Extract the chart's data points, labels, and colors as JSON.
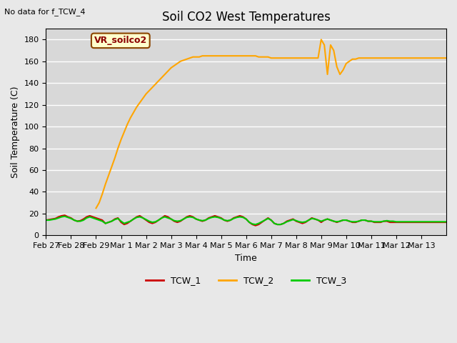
{
  "title": "Soil CO2 West Temperatures",
  "ylabel": "Soil Temperature (C)",
  "xlabel": "Time",
  "no_data_label": "No data for f_TCW_4",
  "vr_label": "VR_soilco2",
  "ylim": [
    0,
    190
  ],
  "yticks": [
    0,
    20,
    40,
    60,
    80,
    100,
    120,
    140,
    160,
    180
  ],
  "bg_color": "#e8e8e8",
  "plot_bg_color": "#d8d8d8",
  "grid_color": "#ffffff",
  "legend": [
    "TCW_1",
    "TCW_2",
    "TCW_3"
  ],
  "line_colors": [
    "#cc0000",
    "#ffa500",
    "#00cc00"
  ],
  "tcw1_times_days": [
    0.0,
    0.125,
    0.25,
    0.375,
    0.5,
    0.625,
    0.75,
    0.875,
    1.0,
    1.125,
    1.25,
    1.375,
    1.5,
    1.625,
    1.75,
    1.875,
    2.0,
    2.125,
    2.25,
    2.375,
    2.5,
    2.625,
    2.75,
    2.875,
    3.0,
    3.125,
    3.25,
    3.375,
    3.5,
    3.625,
    3.75,
    3.875,
    4.0,
    4.125,
    4.25,
    4.375,
    4.5,
    4.625,
    4.75,
    4.875,
    5.0,
    5.125,
    5.25,
    5.375,
    5.5,
    5.625,
    5.75,
    5.875,
    6.0,
    6.125,
    6.25,
    6.375,
    6.5,
    6.625,
    6.75,
    6.875,
    7.0,
    7.125,
    7.25,
    7.375,
    7.5,
    7.625,
    7.75,
    7.875,
    8.0,
    8.125,
    8.25,
    8.375,
    8.5,
    8.625,
    8.75,
    8.875,
    9.0,
    9.125,
    9.25,
    9.375,
    9.5,
    9.625,
    9.75,
    9.875,
    10.0,
    10.125,
    10.25,
    10.375,
    10.5,
    10.625,
    10.75,
    10.875,
    11.0,
    11.125,
    11.25,
    11.375,
    11.5,
    11.625,
    11.75,
    11.875,
    12.0,
    12.125,
    12.25,
    12.375,
    12.5,
    12.625,
    12.75,
    12.875,
    13.0,
    13.125,
    13.25,
    13.375,
    13.5,
    13.625,
    13.75,
    13.875,
    14.0,
    14.125,
    14.25,
    14.375,
    14.5,
    14.625,
    14.75,
    14.875,
    15.0,
    15.125,
    15.25,
    15.375,
    15.5,
    15.625,
    15.75,
    15.875,
    16.0
  ],
  "tcw1_vals": [
    14,
    14.5,
    15,
    15.5,
    17,
    18,
    18.5,
    17,
    16,
    14,
    13,
    13.5,
    15,
    17,
    18,
    17,
    16,
    15,
    14,
    11,
    12,
    13,
    15,
    16,
    12,
    10,
    11,
    13,
    15,
    17,
    18,
    16,
    14,
    12,
    11,
    12,
    14,
    16,
    18,
    17,
    15,
    13,
    12,
    13,
    15,
    17,
    18,
    17,
    15,
    14,
    13,
    14,
    16,
    17,
    18,
    17,
    16,
    14,
    13,
    14,
    16,
    17,
    18,
    17,
    15,
    12,
    10,
    9,
    10,
    12,
    14,
    16,
    14,
    11,
    10,
    10,
    11,
    13,
    14,
    15,
    13,
    12,
    11,
    12,
    14,
    16,
    15,
    14,
    12,
    14,
    15,
    14,
    13,
    12,
    13,
    14,
    14,
    13,
    12,
    12,
    13,
    14,
    14,
    13,
    13,
    12,
    12,
    12,
    13,
    13,
    12,
    12,
    12,
    12,
    12,
    12,
    12,
    12,
    12,
    12,
    12,
    12,
    12,
    12,
    12,
    12,
    12,
    12,
    12
  ],
  "tcw2_start_day": 2.0,
  "tcw2_times_days": [
    2.0,
    2.125,
    2.25,
    2.375,
    2.5,
    2.625,
    2.75,
    2.875,
    3.0,
    3.125,
    3.25,
    3.375,
    3.5,
    3.625,
    3.75,
    3.875,
    4.0,
    4.125,
    4.25,
    4.375,
    4.5,
    4.625,
    4.75,
    4.875,
    5.0,
    5.125,
    5.25,
    5.375,
    5.5,
    5.625,
    5.75,
    5.875,
    6.0,
    6.125,
    6.25,
    6.375,
    6.5,
    6.625,
    6.75,
    6.875,
    7.0,
    7.125,
    7.25,
    7.375,
    7.5,
    7.625,
    7.75,
    7.875,
    8.0,
    8.125,
    8.25,
    8.375,
    8.5,
    8.625,
    8.75,
    8.875,
    9.0,
    9.125,
    9.25,
    9.375,
    9.5,
    9.625,
    9.75,
    9.875,
    10.0,
    10.125,
    10.25,
    10.375,
    10.5,
    10.625,
    10.75,
    10.875,
    11.0,
    11.125,
    11.25,
    11.375,
    11.5,
    11.625,
    11.75,
    11.875,
    12.0,
    12.125,
    12.25,
    12.375,
    12.5,
    12.625,
    12.75,
    12.875,
    13.0,
    13.125,
    13.25,
    13.375,
    13.5,
    13.625,
    13.75,
    13.875,
    14.0,
    14.125,
    14.25,
    14.375,
    14.5,
    14.625,
    14.75,
    14.875,
    15.0,
    15.125,
    15.25,
    15.375,
    15.5,
    15.625,
    15.75,
    15.875,
    16.0
  ],
  "tcw2_vals": [
    25,
    30,
    38,
    47,
    55,
    63,
    71,
    80,
    88,
    95,
    102,
    108,
    113,
    118,
    122,
    126,
    130,
    133,
    136,
    139,
    142,
    145,
    148,
    151,
    154,
    156,
    158,
    160,
    161,
    162,
    163,
    164,
    164,
    164,
    165,
    165,
    165,
    165,
    165,
    165,
    165,
    165,
    165,
    165,
    165,
    165,
    165,
    165,
    165,
    165,
    165,
    165,
    164,
    164,
    164,
    164,
    163,
    163,
    163,
    163,
    163,
    163,
    163,
    163,
    163,
    163,
    163,
    163,
    163,
    163,
    163,
    163,
    180,
    175,
    148,
    175,
    170,
    155,
    148,
    152,
    158,
    160,
    162,
    162,
    163,
    163,
    163,
    163,
    163,
    163,
    163,
    163,
    163,
    163,
    163,
    163,
    163,
    163,
    163,
    163,
    163,
    163,
    163,
    163,
    163,
    163,
    163,
    163,
    163,
    163,
    163,
    163,
    163
  ],
  "tcw3_times_days": [
    0.0,
    0.125,
    0.25,
    0.375,
    0.5,
    0.625,
    0.75,
    0.875,
    1.0,
    1.125,
    1.25,
    1.375,
    1.5,
    1.625,
    1.75,
    1.875,
    2.0,
    2.125,
    2.25,
    2.375,
    2.5,
    2.625,
    2.75,
    2.875,
    3.0,
    3.125,
    3.25,
    3.375,
    3.5,
    3.625,
    3.75,
    3.875,
    4.0,
    4.125,
    4.25,
    4.375,
    4.5,
    4.625,
    4.75,
    4.875,
    5.0,
    5.125,
    5.25,
    5.375,
    5.5,
    5.625,
    5.75,
    5.875,
    6.0,
    6.125,
    6.25,
    6.375,
    6.5,
    6.625,
    6.75,
    6.875,
    7.0,
    7.125,
    7.25,
    7.375,
    7.5,
    7.625,
    7.75,
    7.875,
    8.0,
    8.125,
    8.25,
    8.375,
    8.5,
    8.625,
    8.75,
    8.875,
    9.0,
    9.125,
    9.25,
    9.375,
    9.5,
    9.625,
    9.75,
    9.875,
    10.0,
    10.125,
    10.25,
    10.375,
    10.5,
    10.625,
    10.75,
    10.875,
    11.0,
    11.125,
    11.25,
    11.375,
    11.5,
    11.625,
    11.75,
    11.875,
    12.0,
    12.125,
    12.25,
    12.375,
    12.5,
    12.625,
    12.75,
    12.875,
    13.0,
    13.125,
    13.25,
    13.375,
    13.5,
    13.625,
    13.75,
    13.875,
    14.0,
    14.125,
    14.25,
    14.375,
    14.5,
    14.625,
    14.75,
    14.875,
    15.0,
    15.125,
    15.25,
    15.375,
    15.5,
    15.625,
    15.75,
    15.875,
    16.0
  ],
  "tcw3_vals": [
    14,
    14,
    14.5,
    15,
    16,
    17,
    17.5,
    16.5,
    15.5,
    14,
    13,
    13,
    14,
    16,
    17,
    16,
    15,
    14,
    13,
    11,
    12,
    13,
    14.5,
    15.5,
    13,
    11,
    12,
    13,
    15,
    16.5,
    17,
    16,
    14.5,
    13,
    12,
    12.5,
    14,
    16,
    17,
    16,
    15,
    13.5,
    13,
    13.5,
    15,
    16.5,
    17,
    16.5,
    15,
    14,
    13.5,
    14,
    15.5,
    16.5,
    17,
    16.5,
    15.5,
    14,
    13.5,
    14,
    15.5,
    16.5,
    17,
    16.5,
    15,
    12,
    10.5,
    10,
    11,
    12.5,
    14,
    15.5,
    14,
    11,
    10,
    10,
    11,
    12.5,
    13.5,
    14.5,
    13.5,
    12.5,
    12,
    12.5,
    14,
    15.5,
    15,
    14,
    13,
    14,
    15,
    14,
    13,
    12.5,
    13,
    14,
    14,
    13,
    12.5,
    12.5,
    13,
    14,
    14,
    13,
    13,
    12.5,
    12.5,
    12.5,
    13,
    13.5,
    13,
    13,
    12.5,
    12.5,
    12.5,
    12.5,
    12.5,
    12.5,
    12.5,
    12.5,
    12.5,
    12.5,
    12.5,
    12.5,
    12.5,
    12.5,
    12.5,
    12.5,
    12.5
  ],
  "xtick_labels": [
    "Feb 27",
    "Feb 28",
    "Feb 29",
    "Mar 1",
    "Mar 2",
    "Mar 3",
    "Mar 4",
    "Mar 5",
    "Mar 6",
    "Mar 7",
    "Mar 8",
    "Mar 9",
    "Mar 10",
    "Mar 11",
    "Mar 12",
    "Mar 13"
  ],
  "xtick_days": [
    0,
    1,
    2,
    3,
    4,
    5,
    6,
    7,
    8,
    9,
    10,
    11,
    12,
    13,
    14,
    15
  ]
}
